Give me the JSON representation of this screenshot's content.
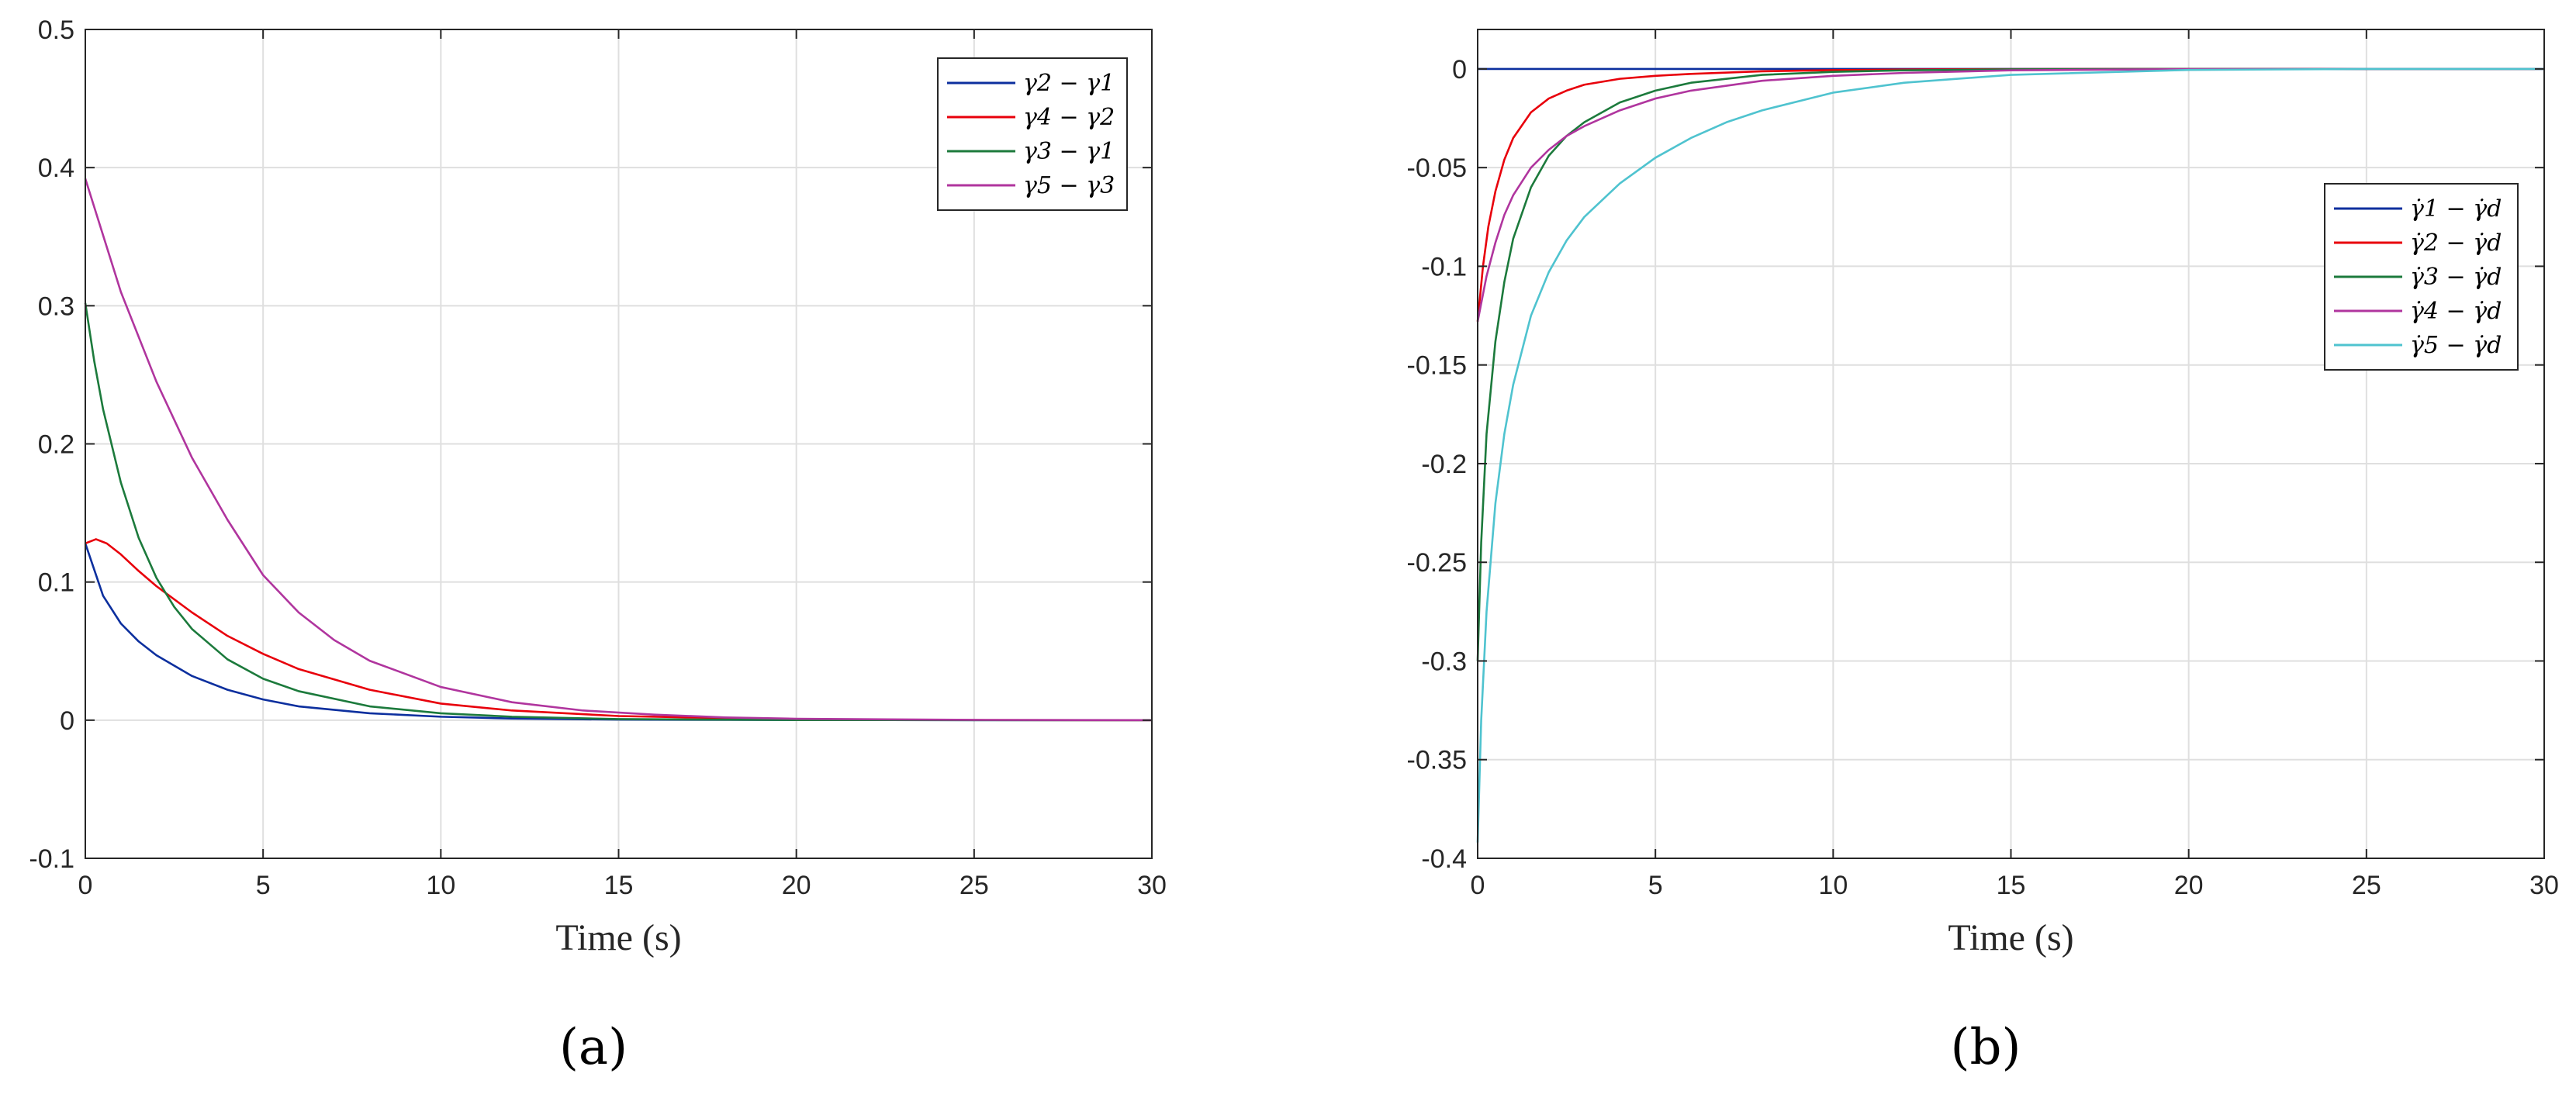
{
  "chart_data": [
    {
      "type": "line",
      "title": "",
      "xlabel": "Time (s)",
      "ylabel": "",
      "xlim": [
        0,
        30
      ],
      "ylim": [
        -0.1,
        0.5
      ],
      "xticks": [
        0,
        5,
        10,
        15,
        20,
        25,
        30
      ],
      "yticks": [
        -0.1,
        0,
        0.1,
        0.2,
        0.3,
        0.4,
        0.5
      ],
      "grid": true,
      "legend_position": "top-right",
      "caption": "(a)",
      "series": [
        {
          "name": "γ2 − γ1",
          "color": "#0c2f9e",
          "x": [
            0,
            0.5,
            1,
            1.5,
            2,
            3,
            4,
            5,
            6,
            8,
            10,
            12,
            15,
            20,
            25,
            30
          ],
          "y": [
            0.128,
            0.09,
            0.07,
            0.057,
            0.047,
            0.032,
            0.022,
            0.015,
            0.01,
            0.005,
            0.0025,
            0.0012,
            0.0004,
            0.0001,
            0,
            0
          ]
        },
        {
          "name": "γ4 − γ2",
          "color": "#e8000b",
          "x": [
            0,
            0.3,
            0.6,
            1,
            1.5,
            2,
            3,
            4,
            5,
            6,
            8,
            10,
            12,
            15,
            20,
            25,
            30
          ],
          "y": [
            0.128,
            0.131,
            0.128,
            0.12,
            0.108,
            0.097,
            0.078,
            0.061,
            0.048,
            0.037,
            0.022,
            0.012,
            0.007,
            0.003,
            0.0005,
            0.0001,
            0
          ]
        },
        {
          "name": "γ3 − γ1",
          "color": "#1c7a3c",
          "x": [
            0,
            0.25,
            0.5,
            1,
            1.5,
            2,
            2.5,
            3,
            4,
            5,
            6,
            8,
            10,
            12,
            15,
            20,
            25,
            30
          ],
          "y": [
            0.302,
            0.26,
            0.225,
            0.172,
            0.132,
            0.103,
            0.082,
            0.066,
            0.044,
            0.03,
            0.021,
            0.01,
            0.005,
            0.0025,
            0.0008,
            0.0001,
            0,
            0
          ]
        },
        {
          "name": "γ5 − γ3",
          "color": "#b0359e",
          "x": [
            0,
            1,
            2,
            3,
            4,
            5,
            6,
            7,
            8,
            10,
            12,
            14,
            16,
            18,
            20,
            25,
            30
          ],
          "y": [
            0.392,
            0.31,
            0.245,
            0.19,
            0.145,
            0.105,
            0.078,
            0.058,
            0.043,
            0.024,
            0.013,
            0.007,
            0.004,
            0.002,
            0.001,
            0.0002,
            0
          ]
        }
      ]
    },
    {
      "type": "line",
      "title": "",
      "xlabel": "Time (s)",
      "ylabel": "",
      "xlim": [
        0,
        30
      ],
      "ylim": [
        -0.4,
        0.02
      ],
      "xticks": [
        0,
        5,
        10,
        15,
        20,
        25,
        30
      ],
      "yticks": [
        -0.4,
        -0.35,
        -0.3,
        -0.25,
        -0.2,
        -0.15,
        -0.1,
        -0.05,
        0
      ],
      "grid": true,
      "legend_position": "right",
      "caption": "(b)",
      "series": [
        {
          "name": "γ̇1 − γ̇d",
          "color": "#0c2f9e",
          "x": [
            0,
            30
          ],
          "y": [
            0,
            0
          ]
        },
        {
          "name": "γ̇2 − γ̇d",
          "color": "#e8000b",
          "x": [
            0,
            0.15,
            0.3,
            0.5,
            0.75,
            1,
            1.5,
            2,
            2.5,
            3,
            4,
            5,
            6,
            8,
            10,
            12,
            15,
            20,
            25,
            30
          ],
          "y": [
            -0.128,
            -0.1,
            -0.08,
            -0.062,
            -0.046,
            -0.035,
            -0.022,
            -0.015,
            -0.011,
            -0.008,
            -0.005,
            -0.0035,
            -0.0025,
            -0.0012,
            -0.0006,
            -0.0003,
            -0.0001,
            0,
            0,
            0
          ]
        },
        {
          "name": "γ̇3 − γ̇d",
          "color": "#1c7a3c",
          "x": [
            0,
            0.1,
            0.25,
            0.5,
            0.75,
            1,
            1.5,
            2,
            2.5,
            3,
            4,
            5,
            6,
            8,
            10,
            12,
            15,
            20,
            25,
            30
          ],
          "y": [
            -0.3,
            -0.24,
            -0.185,
            -0.138,
            -0.108,
            -0.086,
            -0.06,
            -0.044,
            -0.034,
            -0.027,
            -0.017,
            -0.011,
            -0.007,
            -0.003,
            -0.0015,
            -0.0007,
            -0.0002,
            0,
            0,
            0
          ]
        },
        {
          "name": "γ̇4 − γ̇d",
          "color": "#b0359e",
          "x": [
            0,
            0.25,
            0.5,
            0.75,
            1,
            1.5,
            2,
            2.5,
            3,
            4,
            5,
            6,
            8,
            10,
            12,
            15,
            20,
            25,
            30
          ],
          "y": [
            -0.128,
            -0.105,
            -0.088,
            -0.074,
            -0.064,
            -0.05,
            -0.041,
            -0.034,
            -0.029,
            -0.021,
            -0.015,
            -0.011,
            -0.006,
            -0.0035,
            -0.002,
            -0.0007,
            -0.0001,
            0,
            0
          ]
        },
        {
          "name": "γ̇5 − γ̇d",
          "color": "#4fc3cf",
          "x": [
            0,
            0.1,
            0.25,
            0.5,
            0.75,
            1,
            1.5,
            2,
            2.5,
            3,
            4,
            5,
            6,
            7,
            8,
            10,
            12,
            15,
            20,
            25,
            30
          ],
          "y": [
            -0.392,
            -0.33,
            -0.275,
            -0.22,
            -0.185,
            -0.16,
            -0.125,
            -0.103,
            -0.087,
            -0.075,
            -0.058,
            -0.045,
            -0.035,
            -0.027,
            -0.021,
            -0.012,
            -0.007,
            -0.003,
            -0.0005,
            0,
            0
          ]
        }
      ]
    }
  ]
}
